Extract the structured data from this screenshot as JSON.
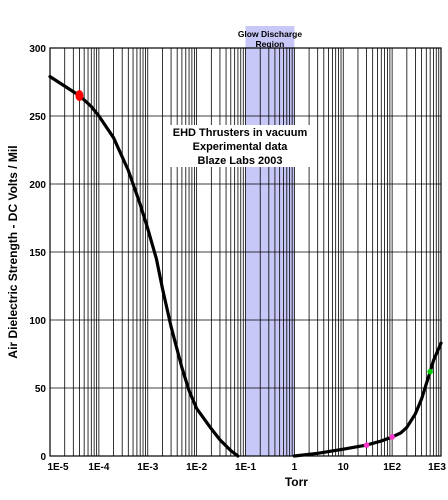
{
  "chart_data": {
    "type": "line",
    "xlabel": "Torr",
    "ylabel": "Air Dielectric Strength - DC Volts / Mil",
    "x_scale": "log",
    "xlim": [
      1e-05,
      1000
    ],
    "ylim": [
      0,
      300
    ],
    "x_tick_labels": [
      "1E-5",
      "1E-4",
      "1E-3",
      "1E-2",
      "1E-1",
      "1",
      "10",
      "1E2",
      "1E3"
    ],
    "x_tick_values": [
      1e-05,
      0.0001,
      0.001,
      0.01,
      0.1,
      1,
      10,
      100,
      1000
    ],
    "y_ticks": [
      0,
      50,
      100,
      150,
      200,
      250,
      300
    ],
    "grid": true,
    "curve_color": "#000000",
    "series": [
      {
        "points": [
          [
            1e-05,
            279
          ],
          [
            2e-05,
            272
          ],
          [
            4e-05,
            265
          ],
          [
            7e-05,
            257
          ],
          [
            0.0001,
            250
          ],
          [
            0.0002,
            234
          ],
          [
            0.0004,
            210
          ],
          [
            0.0007,
            185
          ],
          [
            0.001,
            167
          ],
          [
            0.0015,
            145
          ],
          [
            0.002,
            123
          ],
          [
            0.003,
            95
          ],
          [
            0.005,
            65
          ],
          [
            0.007,
            48
          ],
          [
            0.01,
            35
          ],
          [
            0.02,
            20
          ],
          [
            0.03,
            12
          ],
          [
            0.05,
            4
          ],
          [
            0.07,
            0
          ]
        ]
      },
      {
        "points": [
          [
            1,
            0
          ],
          [
            3,
            2
          ],
          [
            10,
            5
          ],
          [
            30,
            8
          ],
          [
            60,
            11
          ],
          [
            100,
            14
          ],
          [
            150,
            17
          ],
          [
            200,
            21
          ],
          [
            300,
            31
          ],
          [
            400,
            42
          ],
          [
            500,
            53
          ],
          [
            600,
            62
          ],
          [
            700,
            70
          ],
          [
            1000,
            83
          ]
        ]
      }
    ],
    "markers": [
      {
        "x": 4e-05,
        "y": 265,
        "color": "#ff0000"
      },
      {
        "x": 30,
        "y": 8,
        "color": "#ff33cc"
      },
      {
        "x": 100,
        "y": 14,
        "color": "#ff33cc"
      },
      {
        "x": 600,
        "y": 62,
        "color": "#00cc00"
      }
    ],
    "band": {
      "x_range": [
        0.1,
        1
      ],
      "color": "#c8c8f8",
      "label_line1": "Glow Discharge",
      "label_line2": "Region"
    },
    "annotation": {
      "lines": [
        "EHD Thrusters in vacuum",
        "Experimental data",
        "Blaze Labs 2003"
      ]
    }
  }
}
